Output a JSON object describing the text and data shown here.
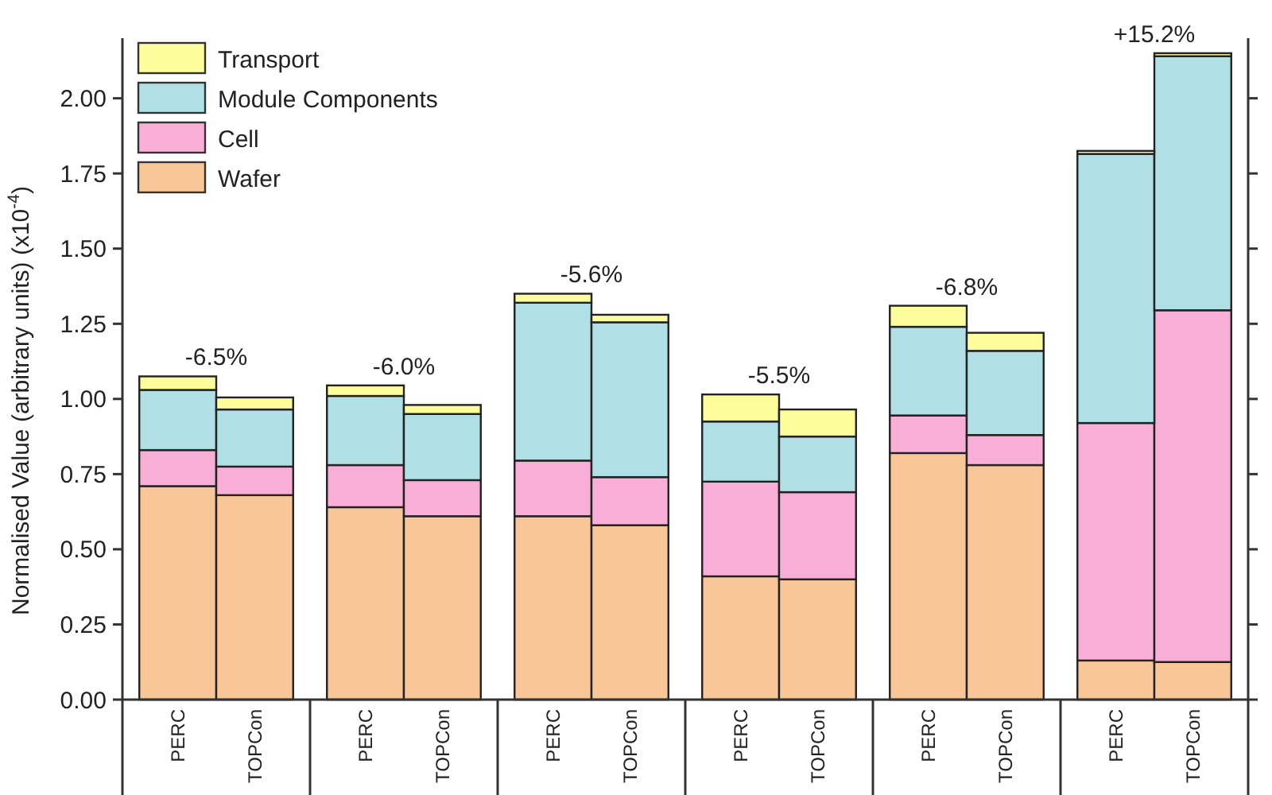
{
  "chart_data": {
    "type": "bar",
    "stacked": true,
    "ylabel": "Normalised Value (arbitrary units) (x10$^{-4}$)",
    "categories": [
      "PERC",
      "TOPCon",
      "PERC",
      "TOPCon",
      "PERC",
      "TOPCon",
      "PERC",
      "TOPCon",
      "PERC",
      "TOPCon",
      "PERC",
      "TOPCon"
    ],
    "series": [
      {
        "name": "Wafer",
        "color": "#f9c698",
        "values": [
          0.71,
          0.68,
          0.64,
          0.61,
          0.61,
          0.58,
          0.41,
          0.4,
          0.82,
          0.78,
          0.13,
          0.125
        ]
      },
      {
        "name": "Cell",
        "color": "#f9aed8",
        "values": [
          0.12,
          0.095,
          0.14,
          0.12,
          0.185,
          0.16,
          0.315,
          0.29,
          0.125,
          0.1,
          0.79,
          1.17
        ]
      },
      {
        "name": "Module Components",
        "color": "#b0e0e6",
        "values": [
          0.2,
          0.19,
          0.23,
          0.22,
          0.525,
          0.515,
          0.2,
          0.185,
          0.295,
          0.28,
          0.895,
          0.845
        ]
      },
      {
        "name": "Transport",
        "color": "#fdfd9c",
        "values": [
          0.045,
          0.04,
          0.035,
          0.03,
          0.03,
          0.025,
          0.09,
          0.09,
          0.07,
          0.06,
          0.01,
          0.01
        ]
      }
    ],
    "annotations": [
      "-6.5%",
      "-6.0%",
      "-5.6%",
      "-5.5%",
      "-6.8%",
      "+15.2%"
    ],
    "ylim": [
      0,
      2.2
    ],
    "yticks": [
      {
        "value": 0,
        "label": "0.00"
      },
      {
        "value": 0.25,
        "label": "0.25"
      },
      {
        "value": 0.5,
        "label": "0.50"
      },
      {
        "value": 0.75,
        "label": "0.75"
      },
      {
        "value": 1,
        "label": "1.00"
      },
      {
        "value": 1.25,
        "label": "1.25"
      },
      {
        "value": 1.5,
        "label": "1.50"
      },
      {
        "value": 1.75,
        "label": "1.75"
      },
      {
        "value": 2,
        "label": "2.00"
      }
    ],
    "legend": "top left",
    "grid": false
  }
}
